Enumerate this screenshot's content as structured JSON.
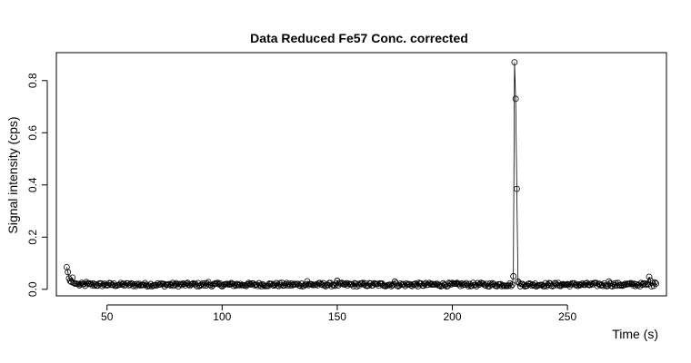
{
  "chart_data": {
    "type": "scatter",
    "title": "Data Reduced Fe57 Conc. corrected",
    "xlabel": "Time (s)",
    "ylabel": "Signal intensity (cps)",
    "xlim": [
      28,
      293
    ],
    "ylim": [
      -0.025,
      0.907
    ],
    "x_ticks": [
      50,
      100,
      150,
      200,
      250
    ],
    "x_tick_labels": [
      "50",
      "100",
      "150",
      "200",
      "250"
    ],
    "y_ticks": [
      0.0,
      0.2,
      0.4,
      0.6,
      0.8
    ],
    "y_tick_labels": [
      "0.0",
      "0.2",
      "0.4",
      "0.6",
      "0.8"
    ],
    "grid": false,
    "legend": "none",
    "marker": "open-circle",
    "line_connecting_points": true,
    "series": [
      {
        "x_start": 32.5,
        "x_end": 288.5,
        "x_step": 0.5,
        "baseline": 0.018,
        "noise_amplitude": 0.007,
        "points": [
          {
            "x": 32.5,
            "y": 0.085
          },
          {
            "x": 33.0,
            "y": 0.066
          },
          {
            "x": 33.5,
            "y": 0.042
          },
          {
            "x": 34.0,
            "y": 0.032
          },
          {
            "x": 34.5,
            "y": 0.028
          },
          {
            "x": 35.0,
            "y": 0.045
          },
          {
            "x": 35.5,
            "y": 0.025
          },
          {
            "x": 36.0,
            "y": 0.022
          },
          {
            "x": 36.5,
            "y": 0.022
          },
          {
            "x": 37.0,
            "y": 0.021
          },
          {
            "x": 41.0,
            "y": 0.028
          },
          {
            "x": 94.0,
            "y": 0.028
          },
          {
            "x": 137.0,
            "y": 0.031
          },
          {
            "x": 150.0,
            "y": 0.033
          },
          {
            "x": 175.0,
            "y": 0.03
          },
          {
            "x": 226.5,
            "y": 0.05
          },
          {
            "x": 227.0,
            "y": 0.87
          },
          {
            "x": 227.5,
            "y": 0.73
          },
          {
            "x": 228.0,
            "y": 0.385
          },
          {
            "x": 228.5,
            "y": 0.03
          },
          {
            "x": 268.0,
            "y": 0.03
          },
          {
            "x": 285.5,
            "y": 0.048
          },
          {
            "x": 286.0,
            "y": 0.034
          },
          {
            "x": 288.0,
            "y": 0.026
          },
          {
            "x": 288.5,
            "y": 0.022
          }
        ]
      }
    ]
  }
}
